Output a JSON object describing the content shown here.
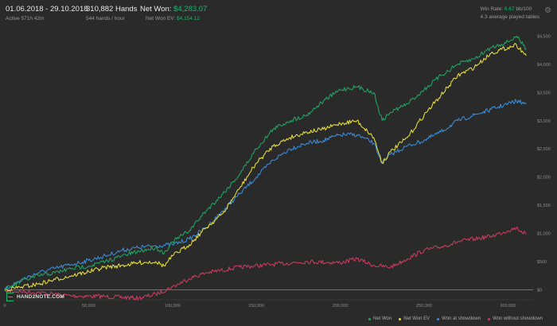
{
  "header": {
    "date_range": "01.06.2018 - 29.10.2018",
    "active_time": "Active 571h 42m",
    "hands": "310,882 Hands",
    "hands_per_hour": "544 hands / hour",
    "net_won_label": "Net Won:",
    "net_won_value": "$4,283.07",
    "net_won_ev_label": "Net Won  EV:",
    "net_won_ev_value": "$4,154.12",
    "win_rate_label": "Win Rate:",
    "win_rate_value": "6.67",
    "win_rate_unit": "bb/100",
    "avg_tables": "4.3 average played tables",
    "settings_icon": "gear-icon"
  },
  "logo_text": "HAND2NOTE.COM",
  "colors": {
    "net_won": "#1fa664",
    "net_won_ev": "#e8e03a",
    "won_showdown": "#3a8edb",
    "won_without_showdown": "#cc3a62",
    "accent": "#1db86e"
  },
  "chart_data": {
    "type": "line",
    "title": "",
    "xlabel": "",
    "ylabel": "",
    "xlim": [
      0,
      315000
    ],
    "ylim": [
      -150,
      4550
    ],
    "x_ticks": [
      0,
      50000,
      100000,
      150000,
      200000,
      250000,
      300000
    ],
    "x_tick_labels": [
      "0",
      "50,000",
      "100,000",
      "150,000",
      "200,000",
      "250,000",
      "300,000"
    ],
    "y_ticks": [
      0,
      500,
      1000,
      1500,
      2000,
      2500,
      3000,
      3500,
      4000,
      4500
    ],
    "y_tick_labels": [
      "$0",
      "$500",
      "$1,000",
      "$1,500",
      "$2,000",
      "$2,500",
      "$3,000",
      "$3,500",
      "$4,000",
      "$4,500"
    ],
    "grid": false,
    "legend_position": "bottom-right",
    "series": [
      {
        "name": "Net Won",
        "color": "#1fa664",
        "x": [
          0,
          10000,
          20000,
          30000,
          40000,
          50000,
          60000,
          70000,
          80000,
          90000,
          95000,
          100000,
          110000,
          120000,
          130000,
          140000,
          150000,
          160000,
          170000,
          180000,
          190000,
          200000,
          210000,
          220000,
          225000,
          230000,
          240000,
          250000,
          260000,
          270000,
          280000,
          290000,
          300000,
          305000,
          310882
        ],
        "y": [
          0,
          150,
          250,
          300,
          380,
          420,
          500,
          600,
          680,
          750,
          650,
          850,
          1050,
          1400,
          1700,
          2050,
          2500,
          2850,
          3000,
          3100,
          3350,
          3550,
          3600,
          3500,
          3000,
          3150,
          3300,
          3550,
          3800,
          4000,
          4100,
          4300,
          4400,
          4500,
          4283
        ]
      },
      {
        "name": "Net Won  EV",
        "color": "#e8e03a",
        "x": [
          0,
          10000,
          20000,
          30000,
          40000,
          50000,
          60000,
          70000,
          80000,
          90000,
          95000,
          100000,
          110000,
          120000,
          130000,
          140000,
          150000,
          160000,
          170000,
          180000,
          190000,
          200000,
          210000,
          220000,
          225000,
          230000,
          240000,
          250000,
          260000,
          270000,
          280000,
          290000,
          300000,
          305000,
          310882
        ],
        "y": [
          0,
          50,
          100,
          180,
          250,
          320,
          400,
          430,
          480,
          500,
          420,
          600,
          800,
          1100,
          1350,
          1800,
          2250,
          2550,
          2700,
          2800,
          2850,
          2950,
          3000,
          2700,
          2250,
          2450,
          2700,
          3100,
          3450,
          3800,
          3950,
          4200,
          4300,
          4350,
          4154
        ]
      },
      {
        "name": "Won at showdown",
        "color": "#3a8edb",
        "x": [
          0,
          10000,
          20000,
          30000,
          40000,
          50000,
          60000,
          70000,
          80000,
          90000,
          100000,
          110000,
          120000,
          130000,
          140000,
          150000,
          160000,
          170000,
          180000,
          190000,
          200000,
          210000,
          220000,
          225000,
          230000,
          240000,
          250000,
          260000,
          270000,
          280000,
          290000,
          300000,
          305000,
          310882
        ],
        "y": [
          0,
          180,
          300,
          380,
          450,
          520,
          600,
          700,
          750,
          780,
          800,
          900,
          1100,
          1400,
          1700,
          2000,
          2300,
          2500,
          2600,
          2650,
          2750,
          2750,
          2600,
          2250,
          2400,
          2550,
          2650,
          2800,
          3000,
          3100,
          3200,
          3300,
          3350,
          3300
        ]
      },
      {
        "name": "Won without showdown",
        "color": "#cc3a62",
        "x": [
          0,
          20000,
          40000,
          60000,
          80000,
          90000,
          100000,
          110000,
          120000,
          140000,
          160000,
          180000,
          200000,
          210000,
          220000,
          230000,
          240000,
          250000,
          260000,
          270000,
          280000,
          290000,
          300000,
          305000,
          310882
        ],
        "y": [
          -20,
          -50,
          -110,
          -120,
          -150,
          -80,
          50,
          200,
          300,
          400,
          450,
          500,
          480,
          550,
          430,
          400,
          550,
          700,
          760,
          850,
          900,
          950,
          1050,
          1100,
          980
        ]
      }
    ]
  }
}
